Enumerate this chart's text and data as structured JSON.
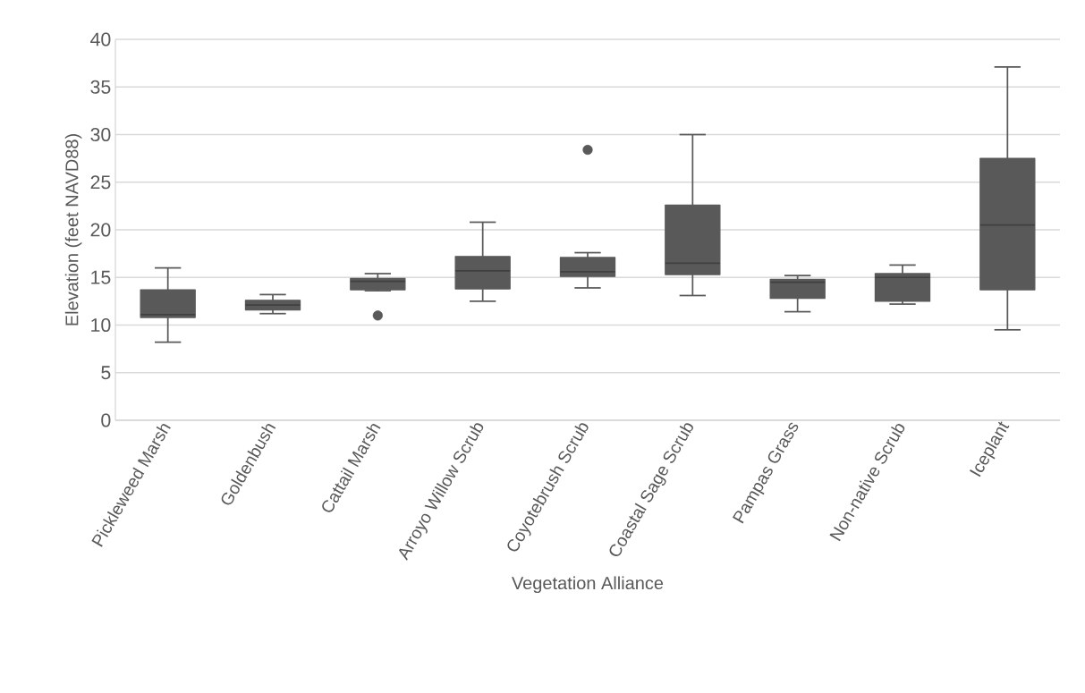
{
  "chart_data": {
    "type": "box",
    "xlabel": "Vegetation Alliance",
    "ylabel": "Elevation (feet NAVD88)",
    "categories": [
      "Pickleweed Marsh",
      "Goldenbush",
      "Cattail Marsh",
      "Arroyo Willow Scrub",
      "Coyotebrush Scrub",
      "Coastal Sage Scrub",
      "Pampas Grass",
      "Non-native Scrub",
      "Iceplant"
    ],
    "color": "#595959",
    "boxes": [
      {
        "low": 8.2,
        "q1": 10.8,
        "median": 11.1,
        "q3": 13.7,
        "high": 16.0
      },
      {
        "low": 11.2,
        "q1": 11.6,
        "median": 12.1,
        "q3": 12.6,
        "high": 13.2
      },
      {
        "low": 13.6,
        "q1": 13.7,
        "median": 14.6,
        "q3": 14.9,
        "high": 15.4,
        "outliers": [
          11.0
        ]
      },
      {
        "low": 12.5,
        "q1": 13.8,
        "median": 15.7,
        "q3": 17.2,
        "high": 20.8
      },
      {
        "low": 13.9,
        "q1": 15.1,
        "median": 15.6,
        "q3": 17.1,
        "high": 17.6,
        "outliers": [
          28.4
        ]
      },
      {
        "low": 13.1,
        "q1": 15.3,
        "median": 16.5,
        "q3": 22.6,
        "high": 30.0
      },
      {
        "low": 11.4,
        "q1": 12.8,
        "median": 14.5,
        "q3": 14.8,
        "high": 15.2
      },
      {
        "low": 12.2,
        "q1": 12.5,
        "median": 15.0,
        "q3": 15.4,
        "high": 16.3
      },
      {
        "low": 9.5,
        "q1": 13.7,
        "median": 20.5,
        "q3": 27.5,
        "high": 37.1
      }
    ],
    "ylim": [
      0,
      40
    ],
    "yticks": [
      0,
      5,
      10,
      15,
      20,
      25,
      30,
      35,
      40
    ],
    "grid": "y"
  }
}
